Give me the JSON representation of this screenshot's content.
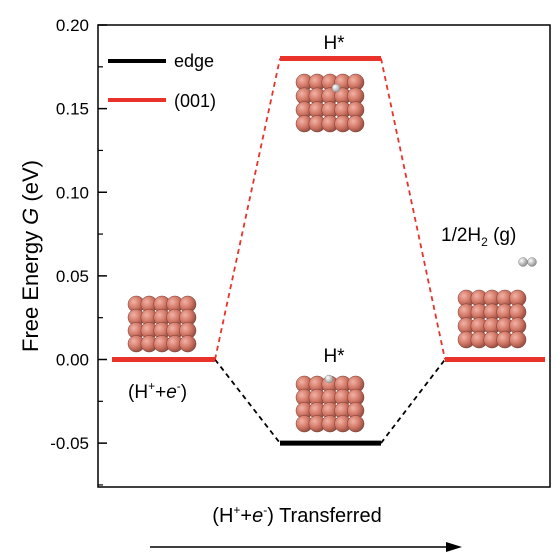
{
  "chart_data": {
    "type": "line",
    "ylabel_prefix": "Free Energy ",
    "ylabel_symbol": "G",
    "ylabel_suffix": " (eV)",
    "xlabel_prefix": "(H",
    "xlabel_sup1": "+",
    "xlabel_mid": "+",
    "xlabel_e": "e",
    "xlabel_sup2": "-",
    "xlabel_suffix": ") Transferred",
    "ylim": [
      -0.075,
      0.2
    ],
    "yticks": [
      "0.20",
      "0.15",
      "0.10",
      "0.05",
      "0.00",
      "-0.05"
    ],
    "ytick_values": [
      0.2,
      0.15,
      0.1,
      0.05,
      0.0,
      -0.05
    ],
    "legend_position": "top-left",
    "series": [
      {
        "name": "edge",
        "color": "#000000",
        "values": [
          0.0,
          -0.05,
          0.0
        ]
      },
      {
        "name": "(001)",
        "color": "#e8322a",
        "values": [
          0.0,
          0.18,
          0.0
        ]
      }
    ],
    "state_labels": {
      "left_prefix": "(H",
      "left_sup": "+",
      "left_mid": "+",
      "left_e": "e",
      "left_sup2": "-",
      "left_suffix": ")",
      "top": "H*",
      "bottom": "H*",
      "right_prefix": "1/2H",
      "right_sub": "2",
      "right_suffix": " (g)"
    },
    "colors": {
      "surface_atom": "#c96b5e",
      "h_atom": "#e0e0e0"
    }
  }
}
